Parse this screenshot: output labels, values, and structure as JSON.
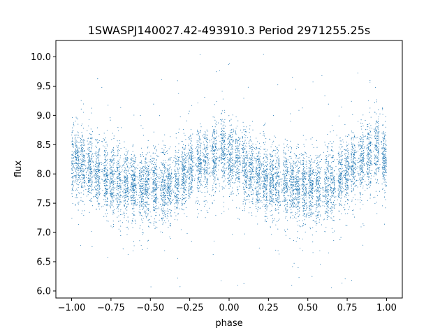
{
  "chart_data": {
    "type": "scatter",
    "title": "1SWASPJ140027.42-493910.3 Period 2971255.25s",
    "xlabel": "phase",
    "ylabel": "flux",
    "xlim": [
      -1.1,
      1.1
    ],
    "ylim": [
      5.88,
      10.28
    ],
    "x_ticks": [
      -1.0,
      -0.75,
      -0.5,
      -0.25,
      0.0,
      0.25,
      0.5,
      0.75,
      1.0
    ],
    "x_tick_labels": [
      "−1.00",
      "−0.75",
      "−0.50",
      "−0.25",
      "0.00",
      "0.25",
      "0.50",
      "0.75",
      "1.00"
    ],
    "y_ticks": [
      6.0,
      6.5,
      7.0,
      7.5,
      8.0,
      8.5,
      9.0,
      9.5,
      10.0
    ],
    "y_tick_labels": [
      "6.0",
      "6.5",
      "7.0",
      "7.5",
      "8.0",
      "8.5",
      "9.0",
      "9.5",
      "10.0"
    ],
    "grid": false,
    "point_color": "#1f77b4",
    "phase_range": [
      -1.0,
      1.0
    ],
    "trend": {
      "phase": [
        -1.0,
        -0.9,
        -0.8,
        -0.7,
        -0.6,
        -0.55,
        -0.5,
        -0.4,
        -0.3,
        -0.2,
        -0.1,
        -0.05,
        0.0,
        0.1,
        0.2,
        0.3,
        0.4,
        0.45,
        0.5,
        0.6,
        0.7,
        0.8,
        0.9,
        0.95,
        1.0
      ],
      "flux": [
        8.2,
        8.1,
        7.95,
        7.85,
        7.8,
        7.75,
        7.8,
        7.75,
        7.95,
        8.2,
        8.25,
        8.4,
        8.3,
        8.1,
        7.95,
        7.85,
        7.8,
        7.75,
        7.78,
        7.75,
        7.95,
        8.15,
        8.3,
        8.4,
        8.2
      ]
    }
  }
}
